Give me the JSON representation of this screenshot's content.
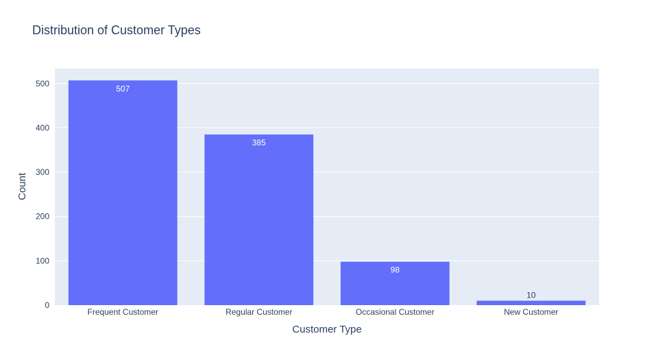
{
  "chart_data": {
    "type": "bar",
    "title": "Distribution of Customer Types",
    "xlabel": "Customer Type",
    "ylabel": "Count",
    "categories": [
      "Frequent Customer",
      "Regular Customer",
      "Occasional Customer",
      "New Customer"
    ],
    "values": [
      507,
      385,
      98,
      10
    ],
    "ylim": [
      0,
      533.7
    ],
    "yticks": [
      0,
      100,
      200,
      300,
      400,
      500
    ],
    "grid": true,
    "legend": "none",
    "colors": {
      "bar": "#636efa",
      "plot_background": "#e5ecf6",
      "grid": "#ffffff",
      "text": "#2a3f5f"
    }
  }
}
